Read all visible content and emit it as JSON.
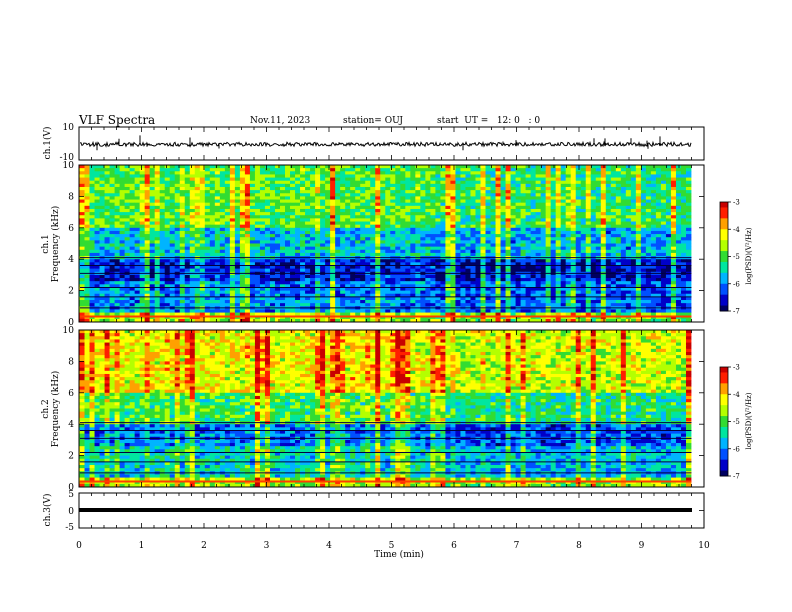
{
  "header": {
    "title": "VLF Spectra",
    "date": "Nov.11, 2023",
    "station": "station= OUJ",
    "start": "start  UT =   12: 0   : 0"
  },
  "chart_data": [
    {
      "type": "line",
      "id": "ch1-waveform",
      "ylabel": "ch.1(V)",
      "ylim": [
        -10,
        10
      ],
      "yticks": [
        "10",
        "-10"
      ],
      "xlim": [
        0,
        10
      ],
      "series": [
        {
          "baseline": -0.5,
          "amplitude": 1.2,
          "end_min": 9.8
        }
      ]
    },
    {
      "type": "heatmap",
      "id": "ch1-spectrogram",
      "ylabel": "ch.1\nFrequency (kHz)",
      "ylim": [
        0,
        10
      ],
      "yticks": [
        "0",
        "2",
        "4",
        "6",
        "8",
        "10"
      ],
      "xlim": [
        0,
        10
      ],
      "data_end_min": 9.8,
      "color_scale": {
        "label": "log(PSD)(V²/Hz)",
        "range": [
          -7,
          -3
        ],
        "ticks": [
          "-3",
          "-4",
          "-5",
          "-6",
          "-7"
        ]
      }
    },
    {
      "type": "heatmap",
      "id": "ch2-spectrogram",
      "ylabel": "ch.2\nFrequency (kHz)",
      "ylim": [
        0,
        10
      ],
      "yticks": [
        "0",
        "2",
        "4",
        "6",
        "8",
        "10"
      ],
      "xlim": [
        0,
        10
      ],
      "data_end_min": 9.8,
      "color_scale": {
        "label": "log(PSD)(V²/Hz)",
        "range": [
          -7,
          -3
        ],
        "ticks": [
          "-3",
          "-4",
          "-5",
          "-6",
          "-7"
        ]
      }
    },
    {
      "type": "line",
      "id": "ch3-waveform",
      "ylabel": "ch.3(V)",
      "ylim": [
        -5,
        5
      ],
      "yticks": [
        "5",
        "0",
        "-5"
      ],
      "xlim": [
        0,
        10
      ],
      "series": [
        {
          "baseline": -0.3,
          "amplitude": 0.1,
          "end_min": 9.8
        }
      ]
    }
  ],
  "xaxis": {
    "label": "Time (min)",
    "ticks": [
      "0",
      "1",
      "2",
      "3",
      "4",
      "5",
      "6",
      "7",
      "8",
      "9",
      "10"
    ]
  },
  "colors": {
    "ramp": [
      "#000060",
      "#0000c8",
      "#0050ff",
      "#00b4ff",
      "#00e6a0",
      "#32dc32",
      "#b4ff00",
      "#ffff00",
      "#ffa000",
      "#ff1e00",
      "#c80000"
    ]
  }
}
